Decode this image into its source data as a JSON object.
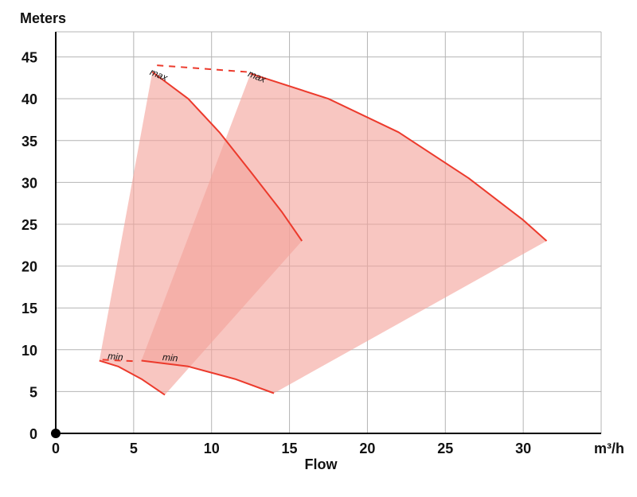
{
  "chart_data": {
    "type": "area",
    "ylabel": "Meters",
    "xlabel": "Flow",
    "xunit": "m³/h",
    "xlim": [
      0,
      35
    ],
    "ylim": [
      0,
      48
    ],
    "x_ticks": [
      0,
      5,
      10,
      15,
      20,
      25,
      30
    ],
    "y_ticks": [
      0,
      5,
      10,
      15,
      20,
      25,
      30,
      35,
      40,
      45
    ],
    "grid": true,
    "colors": {
      "region_fill": "#f4a39b",
      "curve": "#ec3a2c",
      "grid": "#b4b4b4",
      "axis": "#000000"
    },
    "pumps": [
      {
        "max_curve": [
          [
            6.2,
            43.2
          ],
          [
            8.5,
            40.0
          ],
          [
            10.5,
            36.0
          ],
          [
            12.5,
            31.3
          ],
          [
            14.5,
            26.5
          ],
          [
            15.8,
            23.0
          ]
        ],
        "min_curve": [
          [
            2.8,
            8.7
          ],
          [
            4.0,
            8.0
          ],
          [
            5.5,
            6.5
          ],
          [
            7.0,
            4.6
          ]
        ],
        "max_label": "max",
        "min_label": "min"
      },
      {
        "max_curve": [
          [
            12.5,
            43.0
          ],
          [
            17.5,
            40.0
          ],
          [
            22.0,
            36.0
          ],
          [
            26.5,
            30.5
          ],
          [
            30.0,
            25.5
          ],
          [
            31.5,
            23.0
          ]
        ],
        "min_curve": [
          [
            5.5,
            8.7
          ],
          [
            8.5,
            8.0
          ],
          [
            11.5,
            6.5
          ],
          [
            14.0,
            4.8
          ]
        ],
        "max_label": "max",
        "min_label": "min"
      }
    ],
    "dashed_links": [
      [
        [
          6.5,
          44.0
        ],
        [
          12.3,
          43.2
        ]
      ],
      [
        [
          3.0,
          8.8
        ],
        [
          5.3,
          8.6
        ]
      ]
    ],
    "origin_marker": [
      0,
      0
    ]
  }
}
